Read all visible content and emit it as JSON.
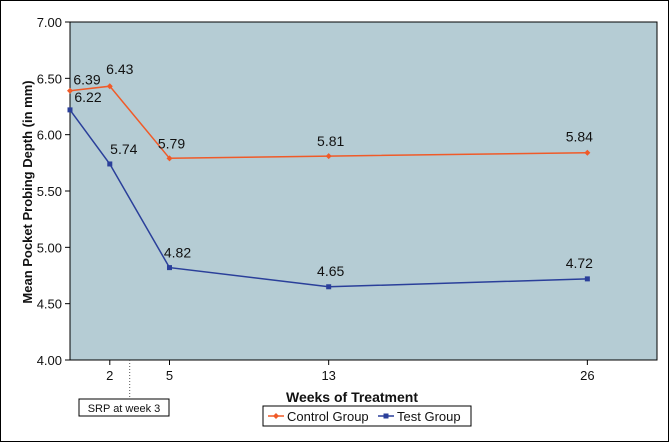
{
  "chart_data": {
    "type": "line",
    "xlabel": "Weeks of Treatment",
    "ylabel": "Mean Pocket Probing Depth (in mm)",
    "ylim": [
      4.0,
      7.0
    ],
    "xlim": [
      0,
      29.5
    ],
    "yticks": [
      "4.00",
      "4.50",
      "5.00",
      "5.50",
      "6.00",
      "6.50",
      "7.00"
    ],
    "xticks": [
      2,
      5,
      13,
      26
    ],
    "grid": false,
    "legend_position": "bottom",
    "annotation": {
      "text": "SRP at week 3",
      "x": 3
    },
    "series": [
      {
        "name": "Control Group",
        "color": "#f05a28",
        "marker": "diamond",
        "x": [
          0,
          2,
          5,
          13,
          26
        ],
        "values": [
          6.39,
          6.43,
          5.79,
          5.81,
          5.84
        ],
        "labels": [
          "6.39",
          "6.43",
          "5.79",
          "5.81",
          "5.84"
        ]
      },
      {
        "name": "Test Group",
        "color": "#2a3f9a",
        "marker": "square",
        "x": [
          0,
          2,
          5,
          13,
          26
        ],
        "values": [
          6.22,
          5.74,
          4.82,
          4.65,
          4.72
        ],
        "labels": [
          "6.22",
          "5.74",
          "4.82",
          "4.65",
          "4.72"
        ]
      }
    ],
    "plot_background": "#b5ccd4"
  }
}
